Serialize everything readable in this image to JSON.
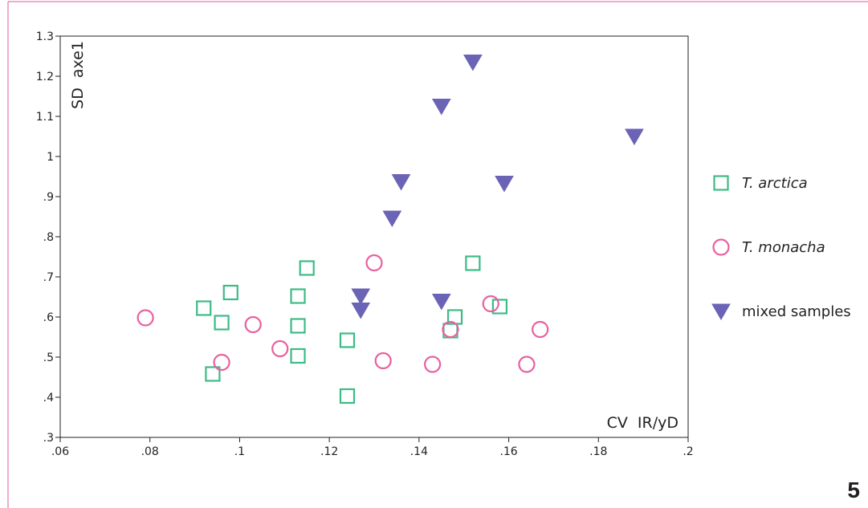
{
  "panel_number": "5",
  "colors": {
    "frame": "#e05a9c",
    "arctica": "#3dbb86",
    "monacha": "#e8609f",
    "mixed": "#6b63b5",
    "axis": "#231f20"
  },
  "chart_data": {
    "type": "scatter",
    "xlabel": "CV  IR/yD",
    "ylabel": "SD  axe1",
    "xlim": [
      0.06,
      0.2
    ],
    "ylim": [
      0.3,
      1.3
    ],
    "x_ticks": [
      0.06,
      0.08,
      0.1,
      0.12,
      0.14,
      0.16,
      0.18,
      0.2
    ],
    "x_tick_labels": [
      ".06",
      ".08",
      ".1",
      ".12",
      ".14",
      ".16",
      ".18",
      ".2"
    ],
    "y_ticks": [
      0.3,
      0.4,
      0.5,
      0.6,
      0.7,
      0.8,
      0.9,
      1.0,
      1.1,
      1.2,
      1.3
    ],
    "y_tick_labels": [
      ".3",
      ".4",
      ".5",
      ".6",
      ".7",
      ".8",
      ".9",
      "1",
      "1.1",
      "1.2",
      "1.3"
    ],
    "grid": false,
    "legend_position": "right",
    "series": [
      {
        "name": "T. arctica",
        "italic": true,
        "marker": "square",
        "color": "#3dbb86",
        "points": [
          [
            0.092,
            0.622
          ],
          [
            0.094,
            0.458
          ],
          [
            0.096,
            0.586
          ],
          [
            0.098,
            0.661
          ],
          [
            0.113,
            0.652
          ],
          [
            0.113,
            0.503
          ],
          [
            0.113,
            0.578
          ],
          [
            0.115,
            0.722
          ],
          [
            0.124,
            0.542
          ],
          [
            0.124,
            0.403
          ],
          [
            0.147,
            0.566
          ],
          [
            0.148,
            0.6
          ],
          [
            0.152,
            0.734
          ],
          [
            0.158,
            0.626
          ]
        ]
      },
      {
        "name": "T. monacha",
        "italic": true,
        "marker": "circle",
        "color": "#e8609f",
        "points": [
          [
            0.079,
            0.598
          ],
          [
            0.096,
            0.487
          ],
          [
            0.103,
            0.581
          ],
          [
            0.109,
            0.521
          ],
          [
            0.13,
            0.735
          ],
          [
            0.132,
            0.491
          ],
          [
            0.143,
            0.482
          ],
          [
            0.147,
            0.569
          ],
          [
            0.156,
            0.633
          ],
          [
            0.164,
            0.482
          ],
          [
            0.167,
            0.569
          ]
        ]
      },
      {
        "name": "mixed samples",
        "italic": false,
        "marker": "triangle-down",
        "color": "#6b63b5",
        "points": [
          [
            0.127,
            0.652
          ],
          [
            0.127,
            0.617
          ],
          [
            0.134,
            0.846
          ],
          [
            0.136,
            0.937
          ],
          [
            0.145,
            1.125
          ],
          [
            0.145,
            0.639
          ],
          [
            0.152,
            1.235
          ],
          [
            0.159,
            0.933
          ],
          [
            0.188,
            1.05
          ]
        ]
      }
    ]
  }
}
